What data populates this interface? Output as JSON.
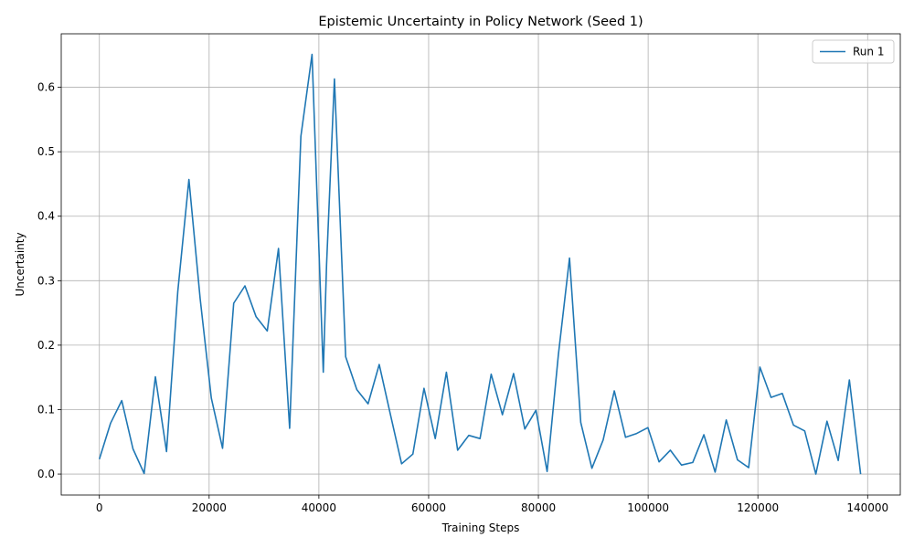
{
  "chart_data": {
    "type": "line",
    "title": "Epistemic Uncertainty in Policy Network (Seed 1)",
    "xlabel": "Training Steps",
    "ylabel": "Uncertainty",
    "xlim": [
      -6950,
      145950
    ],
    "ylim": [
      -0.0325,
      0.683
    ],
    "xticks": [
      0,
      20000,
      40000,
      60000,
      80000,
      100000,
      120000,
      140000
    ],
    "xtick_labels": [
      "0",
      "20000",
      "40000",
      "60000",
      "80000",
      "100000",
      "120000",
      "140000"
    ],
    "yticks": [
      0.0,
      0.1,
      0.2,
      0.3,
      0.4,
      0.5,
      0.6
    ],
    "ytick_labels": [
      "0.0",
      "0.1",
      "0.2",
      "0.3",
      "0.4",
      "0.5",
      "0.6"
    ],
    "grid": true,
    "legend_position": "top-right",
    "series": [
      {
        "name": "Run 1",
        "color": "#1f77b4",
        "x": [
          0,
          2040,
          4080,
          6120,
          8160,
          10200,
          12240,
          14280,
          16320,
          18360,
          20400,
          22440,
          24480,
          26520,
          28560,
          30600,
          32640,
          34680,
          36720,
          38760,
          40800,
          41400,
          42840,
          44880,
          46920,
          48960,
          51000,
          53040,
          55080,
          57120,
          59160,
          61200,
          63240,
          65280,
          67320,
          69360,
          71400,
          73440,
          75480,
          77520,
          79560,
          81600,
          83640,
          85680,
          87720,
          89760,
          91800,
          93840,
          95880,
          97920,
          99960,
          102000,
          104040,
          106080,
          108120,
          110160,
          112200,
          114240,
          116280,
          118320,
          120360,
          122400,
          124440,
          126480,
          128520,
          130560,
          132600,
          134640,
          136680,
          138720
        ],
        "y": [
          0.023,
          0.079,
          0.114,
          0.039,
          0.001,
          0.151,
          0.035,
          0.283,
          0.457,
          0.272,
          0.118,
          0.04,
          0.265,
          0.292,
          0.244,
          0.222,
          0.35,
          0.071,
          0.524,
          0.651,
          0.158,
          0.325,
          0.613,
          0.182,
          0.131,
          0.109,
          0.17,
          0.092,
          0.016,
          0.031,
          0.133,
          0.055,
          0.158,
          0.037,
          0.06,
          0.055,
          0.155,
          0.092,
          0.156,
          0.07,
          0.099,
          0.004,
          0.185,
          0.335,
          0.08,
          0.009,
          0.053,
          0.129,
          0.057,
          0.063,
          0.072,
          0.019,
          0.037,
          0.014,
          0.018,
          0.061,
          0.003,
          0.084,
          0.022,
          0.01,
          0.166,
          0.119,
          0.125,
          0.076,
          0.067,
          0.0,
          0.082,
          0.021,
          0.146,
          0.0
        ]
      }
    ]
  }
}
